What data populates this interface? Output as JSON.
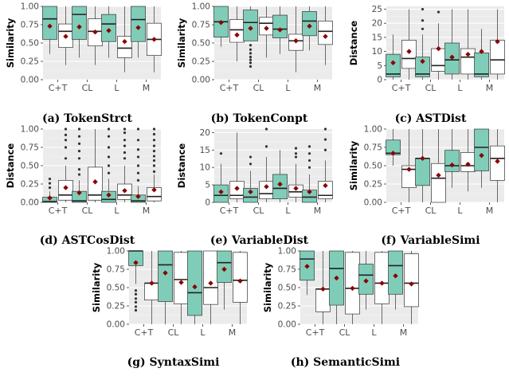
{
  "chart_data": [
    {
      "type": "box",
      "caption": "(a) TokenStrct",
      "ylabel": "Similarity",
      "ylim": [
        0,
        1
      ],
      "yticks": [
        "0.00",
        "0.25",
        "0.50",
        "0.75",
        "1.00"
      ],
      "categories": [
        "C+T",
        "CL",
        "L",
        "M"
      ],
      "colors": {
        "first": "#7FCDB8",
        "second": "#FFFFFF",
        "mean": "#8B0000"
      },
      "boxes": [
        [
          {
            "min": 0.35,
            "q1": 0.55,
            "median": 0.83,
            "q3": 1.0,
            "max": 1.0,
            "mean": 0.73,
            "outliers": []
          },
          {
            "min": 0.2,
            "q1": 0.44,
            "median": 0.66,
            "q3": 0.76,
            "max": 1.0,
            "mean": 0.59,
            "outliers": []
          }
        ],
        [
          {
            "min": 0.3,
            "q1": 0.55,
            "median": 0.89,
            "q3": 1.0,
            "max": 1.0,
            "mean": 0.72,
            "outliers": []
          },
          {
            "min": 0.2,
            "q1": 0.46,
            "median": 0.66,
            "q3": 0.83,
            "max": 1.0,
            "mean": 0.65,
            "outliers": []
          }
        ],
        [
          {
            "min": 0.3,
            "q1": 0.52,
            "median": 0.76,
            "q3": 0.89,
            "max": 1.0,
            "mean": 0.67,
            "outliers": []
          },
          {
            "min": 0.1,
            "q1": 0.3,
            "median": 0.43,
            "q3": 0.59,
            "max": 1.0,
            "mean": 0.52,
            "outliers": []
          }
        ],
        [
          {
            "min": 0.3,
            "q1": 0.52,
            "median": 0.82,
            "q3": 1.0,
            "max": 1.0,
            "mean": 0.71,
            "outliers": []
          },
          {
            "min": 0.1,
            "q1": 0.33,
            "median": 0.55,
            "q3": 0.77,
            "max": 1.0,
            "mean": 0.55,
            "outliers": []
          }
        ]
      ]
    },
    {
      "type": "box",
      "caption": "(b) TokenConpt",
      "ylabel": "Similarity",
      "ylim": [
        0,
        1
      ],
      "yticks": [
        "0.00",
        "0.25",
        "0.50",
        "0.75",
        "1.00"
      ],
      "categories": [
        "C+T",
        "CL",
        "L",
        "M"
      ],
      "colors": {
        "first": "#7FCDB8",
        "second": "#FFFFFF",
        "mean": "#8B0000"
      },
      "boxes": [
        [
          {
            "min": 0.45,
            "q1": 0.58,
            "median": 0.79,
            "q3": 1.0,
            "max": 1.0,
            "mean": 0.78,
            "outliers": []
          },
          {
            "min": 0.25,
            "q1": 0.51,
            "median": 0.68,
            "q3": 0.82,
            "max": 1.0,
            "mean": 0.61,
            "outliers": []
          }
        ],
        [
          {
            "min": 0.53,
            "q1": 0.53,
            "median": 0.78,
            "q3": 0.95,
            "max": 1.0,
            "mean": 0.7,
            "outliers": [
              0.47,
              0.41,
              0.36,
              0.31,
              0.27,
              0.23,
              0.18
            ]
          },
          {
            "min": 0.3,
            "q1": 0.61,
            "median": 0.77,
            "q3": 0.85,
            "max": 1.0,
            "mean": 0.7,
            "outliers": []
          }
        ],
        [
          {
            "min": 0.35,
            "q1": 0.57,
            "median": 0.69,
            "q3": 0.88,
            "max": 1.0,
            "mean": 0.68,
            "outliers": []
          },
          {
            "min": 0.1,
            "q1": 0.4,
            "median": 0.53,
            "q3": 0.62,
            "max": 1.0,
            "mean": 0.53,
            "outliers": []
          }
        ],
        [
          {
            "min": 0.4,
            "q1": 0.6,
            "median": 0.8,
            "q3": 0.93,
            "max": 1.0,
            "mean": 0.73,
            "outliers": []
          },
          {
            "min": 0.2,
            "q1": 0.48,
            "median": 0.66,
            "q3": 0.8,
            "max": 1.0,
            "mean": 0.59,
            "outliers": []
          }
        ]
      ]
    },
    {
      "type": "box",
      "caption": "(c) ASTDist",
      "ylabel": "Distance",
      "ylim": [
        0,
        26
      ],
      "yticks": [
        "0",
        "5",
        "10",
        "15",
        "20",
        "25"
      ],
      "categories": [
        "C+T",
        "CL",
        "L",
        "M"
      ],
      "colors": {
        "first": "#7FCDB8",
        "second": "#FFFFFF",
        "mean": "#8B0000"
      },
      "boxes": [
        [
          {
            "min": 0,
            "q1": 1,
            "median": 2,
            "q3": 9,
            "max": 16,
            "mean": 6,
            "outliers": []
          },
          {
            "min": 0,
            "q1": 4,
            "median": 7.5,
            "q3": 14,
            "max": 25,
            "mean": 10,
            "outliers": []
          }
        ],
        [
          {
            "min": 0,
            "q1": 1,
            "median": 2,
            "q3": 8,
            "max": 16,
            "mean": 6.5,
            "outliers": [
              18,
              21,
              25
            ]
          },
          {
            "min": 0,
            "q1": 3,
            "median": 5,
            "q3": 11,
            "max": 20,
            "mean": 11,
            "outliers": [
              24
            ]
          }
        ],
        [
          {
            "min": 0,
            "q1": 2,
            "median": 7,
            "q3": 13,
            "max": 25,
            "mean": 8,
            "outliers": []
          },
          {
            "min": 0,
            "q1": 2,
            "median": 8,
            "q3": 11,
            "max": 25,
            "mean": 9,
            "outliers": []
          }
        ],
        [
          {
            "min": 0,
            "q1": 1,
            "median": 2,
            "q3": 9.5,
            "max": 18,
            "mean": 10,
            "outliers": []
          },
          {
            "min": 0,
            "q1": 2,
            "median": 7,
            "q3": 14,
            "max": 25,
            "mean": 13.5,
            "outliers": []
          }
        ]
      ]
    },
    {
      "type": "box",
      "caption": "(d) ASTCosDist",
      "ylabel": "Distance",
      "ylim": [
        0,
        1
      ],
      "yticks": [
        "0.00",
        "0.25",
        "0.50",
        "0.75",
        "1.00"
      ],
      "categories": [
        "C+T",
        "CL",
        "L",
        "M"
      ],
      "colors": {
        "first": "#7FCDB8",
        "second": "#FFFFFF",
        "mean": "#8B0000"
      },
      "boxes": [
        [
          {
            "min": 0,
            "q1": 0,
            "median": 0.01,
            "q3": 0.07,
            "max": 0.15,
            "mean": 0.06,
            "outliers": [
              0.2,
              0.26,
              0.32
            ]
          },
          {
            "min": 0,
            "q1": 0.03,
            "median": 0.1,
            "q3": 0.3,
            "max": 0.5,
            "mean": 0.2,
            "outliers": [
              0.6,
              0.75,
              0.85,
              0.92,
              1.0
            ]
          }
        ],
        [
          {
            "min": 0,
            "q1": 0,
            "median": 0.02,
            "q3": 0.15,
            "max": 0.3,
            "mean": 0.13,
            "outliers": [
              0.38,
              0.45,
              0.6,
              0.7,
              0.8,
              0.9,
              1.0
            ]
          },
          {
            "min": 0,
            "q1": 0.03,
            "median": 0.1,
            "q3": 0.48,
            "max": 1.0,
            "mean": 0.28,
            "outliers": []
          }
        ],
        [
          {
            "min": 0,
            "q1": 0,
            "median": 0.04,
            "q3": 0.15,
            "max": 0.32,
            "mean": 0.1,
            "outliers": [
              0.4,
              0.5,
              0.62,
              0.75,
              0.9,
              1.0
            ]
          },
          {
            "min": 0,
            "q1": 0.04,
            "median": 0.1,
            "q3": 0.25,
            "max": 0.5,
            "mean": 0.16,
            "outliers": [
              0.6,
              0.68,
              0.77,
              0.85,
              0.95,
              1.0
            ]
          }
        ],
        [
          {
            "min": 0,
            "q1": 0,
            "median": 0.02,
            "q3": 0.1,
            "max": 0.22,
            "mean": 0.08,
            "outliers": [
              0.3,
              0.4,
              0.5,
              0.62,
              0.72,
              0.85,
              1.0
            ]
          },
          {
            "min": 0,
            "q1": 0.02,
            "median": 0.08,
            "q3": 0.2,
            "max": 0.38,
            "mean": 0.17,
            "outliers": [
              0.42,
              0.5,
              0.57,
              0.63,
              0.7,
              0.77,
              0.85,
              0.93,
              1.0
            ]
          }
        ]
      ]
    },
    {
      "type": "box",
      "caption": "(e) VariableDist",
      "ylabel": "Distance",
      "ylim": [
        0,
        21
      ],
      "yticks": [
        "0",
        "5",
        "10",
        "15",
        "20"
      ],
      "categories": [
        "C+T",
        "CL",
        "L",
        "M"
      ],
      "colors": {
        "first": "#7FCDB8",
        "second": "#FFFFFF",
        "mean": "#8B0000"
      },
      "boxes": [
        [
          {
            "min": 0,
            "q1": 0,
            "median": 2,
            "q3": 5,
            "max": 11,
            "mean": 3,
            "outliers": [
              14
            ]
          },
          {
            "min": 0,
            "q1": 1,
            "median": 2,
            "q3": 6,
            "max": 20,
            "mean": 4,
            "outliers": []
          }
        ],
        [
          {
            "min": 0,
            "q1": 0,
            "median": 1.5,
            "q3": 4,
            "max": 9,
            "mean": 3,
            "outliers": [
              11,
              13
            ]
          },
          {
            "min": 0,
            "q1": 1,
            "median": 2.5,
            "q3": 6,
            "max": 13,
            "mean": 4.5,
            "outliers": [
              16,
              21
            ]
          }
        ],
        [
          {
            "min": 0,
            "q1": 1,
            "median": 4,
            "q3": 8,
            "max": 15,
            "mean": 5.2,
            "outliers": []
          },
          {
            "min": 0,
            "q1": 1.5,
            "median": 3,
            "q3": 5,
            "max": 11,
            "mean": 4,
            "outliers": [
              13,
              14,
              15.5
            ]
          }
        ],
        [
          {
            "min": 0,
            "q1": 0,
            "median": 1.5,
            "q3": 3.5,
            "max": 8,
            "mean": 3,
            "outliers": [
              10,
              12,
              14,
              16
            ]
          },
          {
            "min": 0,
            "q1": 1,
            "median": 2,
            "q3": 6,
            "max": 12,
            "mean": 4.8,
            "outliers": [
              15,
              18,
              21
            ]
          }
        ]
      ]
    },
    {
      "type": "box",
      "caption": "(f) VariableSimi",
      "ylabel": "Similarity",
      "ylim": [
        0,
        1
      ],
      "yticks": [
        "0.00",
        "0.25",
        "0.50",
        "0.75",
        "1.00"
      ],
      "categories": [
        "C+T",
        "CL",
        "L",
        "M"
      ],
      "colors": {
        "first": "#7FCDB8",
        "second": "#FFFFFF",
        "mean": "#8B0000"
      },
      "boxes": [
        [
          {
            "min": 0.5,
            "q1": 0.65,
            "median": 0.67,
            "q3": 0.85,
            "max": 1.0,
            "mean": 0.67,
            "outliers": []
          },
          {
            "min": 0,
            "q1": 0.2,
            "median": 0.45,
            "q3": 0.5,
            "max": 1.0,
            "mean": 0.45,
            "outliers": []
          }
        ],
        [
          {
            "min": 0,
            "q1": 0.23,
            "median": 0.6,
            "q3": 0.6,
            "max": 1.0,
            "mean": 0.6,
            "outliers": []
          },
          {
            "min": 0,
            "q1": 0,
            "median": 0.33,
            "q3": 0.53,
            "max": 1.0,
            "mean": 0.37,
            "outliers": []
          }
        ],
        [
          {
            "min": 0.2,
            "q1": 0.42,
            "median": 0.5,
            "q3": 0.71,
            "max": 1.0,
            "mean": 0.51,
            "outliers": []
          },
          {
            "min": 0.15,
            "q1": 0.42,
            "median": 0.5,
            "q3": 0.68,
            "max": 1.0,
            "mean": 0.52,
            "outliers": []
          }
        ],
        [
          {
            "min": 0.2,
            "q1": 0.43,
            "median": 0.75,
            "q3": 1.0,
            "max": 1.0,
            "mean": 0.64,
            "outliers": []
          },
          {
            "min": 0,
            "q1": 0.3,
            "median": 0.6,
            "q3": 0.77,
            "max": 1.0,
            "mean": 0.56,
            "outliers": []
          }
        ]
      ]
    },
    {
      "type": "box",
      "caption": "(g) SyntaxSimi",
      "ylabel": "Similarity",
      "ylim": [
        0,
        1
      ],
      "yticks": [
        "0.00",
        "0.25",
        "0.50",
        "0.75",
        "1.00"
      ],
      "categories": [
        "C+T",
        "CL",
        "L",
        "M"
      ],
      "colors": {
        "first": "#7FCDB8",
        "second": "#FFFFFF",
        "mean": "#8B0000"
      },
      "boxes": [
        [
          {
            "min": 0.55,
            "q1": 0.8,
            "median": 1.0,
            "q3": 1.0,
            "max": 1.0,
            "mean": 0.84,
            "outliers": [
              0.46,
              0.41,
              0.35,
              0.3,
              0.24,
              0.19
            ]
          },
          {
            "min": 0,
            "q1": 0.33,
            "median": 0.56,
            "q3": 0.56,
            "max": 1.0,
            "mean": 0.56,
            "outliers": []
          }
        ],
        [
          {
            "min": 0,
            "q1": 0.31,
            "median": 0.81,
            "q3": 1.0,
            "max": 1.0,
            "mean": 0.7,
            "outliers": []
          },
          {
            "min": 0,
            "q1": 0.28,
            "median": 0.61,
            "q3": 0.98,
            "max": 1.0,
            "mean": 0.57,
            "outliers": []
          }
        ],
        [
          {
            "min": 0,
            "q1": 0.12,
            "median": 0.43,
            "q3": 1.0,
            "max": 1.0,
            "mean": 0.51,
            "outliers": []
          },
          {
            "min": 0,
            "q1": 0.27,
            "median": 0.5,
            "q3": 1.0,
            "max": 1.0,
            "mean": 0.56,
            "outliers": []
          }
        ],
        [
          {
            "min": 0.2,
            "q1": 0.57,
            "median": 0.84,
            "q3": 1.0,
            "max": 1.0,
            "mean": 0.75,
            "outliers": []
          },
          {
            "min": 0,
            "q1": 0.3,
            "median": 0.6,
            "q3": 0.98,
            "max": 1.0,
            "mean": 0.59,
            "outliers": []
          }
        ]
      ]
    },
    {
      "type": "box",
      "caption": "(h) SemanticSimi",
      "ylabel": "Similarity",
      "ylim": [
        0,
        1
      ],
      "yticks": [
        "0.00",
        "0.25",
        "0.50",
        "0.75",
        "1.00"
      ],
      "categories": [
        "C+T",
        "CL",
        "L",
        "M"
      ],
      "colors": {
        "first": "#7FCDB8",
        "second": "#FFFFFF",
        "mean": "#8B0000"
      },
      "boxes": [
        [
          {
            "min": 0.4,
            "q1": 0.6,
            "median": 0.89,
            "q3": 1.0,
            "max": 1.0,
            "mean": 0.79,
            "outliers": []
          },
          {
            "min": 0,
            "q1": 0.17,
            "median": 0.48,
            "q3": 0.48,
            "max": 1.0,
            "mean": 0.48,
            "outliers": []
          }
        ],
        [
          {
            "min": 0,
            "q1": 0.26,
            "median": 0.76,
            "q3": 1.0,
            "max": 1.0,
            "mean": 0.63,
            "outliers": []
          },
          {
            "min": 0,
            "q1": 0.14,
            "median": 0.49,
            "q3": 0.98,
            "max": 1.0,
            "mean": 0.49,
            "outliers": []
          }
        ],
        [
          {
            "min": 0.2,
            "q1": 0.41,
            "median": 0.67,
            "q3": 0.82,
            "max": 1.0,
            "mean": 0.59,
            "outliers": []
          },
          {
            "min": 0,
            "q1": 0.28,
            "median": 0.56,
            "q3": 0.98,
            "max": 1.0,
            "mean": 0.56,
            "outliers": []
          }
        ],
        [
          {
            "min": 0.2,
            "q1": 0.41,
            "median": 0.8,
            "q3": 1.0,
            "max": 1.0,
            "mean": 0.66,
            "outliers": []
          },
          {
            "min": 0,
            "q1": 0.24,
            "median": 0.56,
            "q3": 0.96,
            "max": 1.0,
            "mean": 0.55,
            "outliers": []
          }
        ]
      ]
    }
  ]
}
